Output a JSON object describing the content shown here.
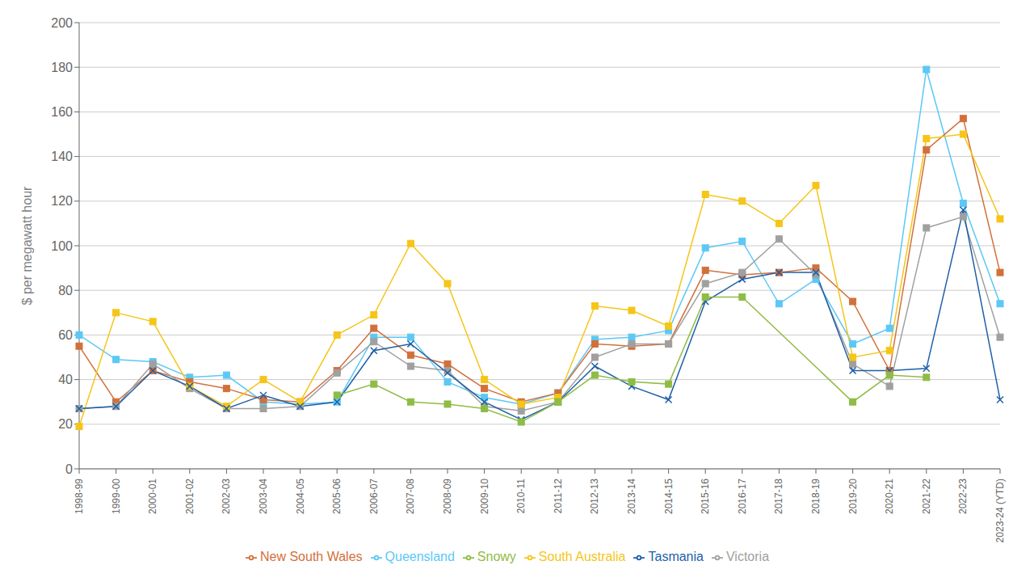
{
  "chart_data": {
    "type": "line",
    "ylabel": "$ per megawatt hour",
    "categories": [
      "1998-99",
      "1999-00",
      "2000-01",
      "2001-02",
      "2002-03",
      "2003-04",
      "2004-05",
      "2005-06",
      "2006-07",
      "2007-08",
      "2008-09",
      "2009-10",
      "2010-11",
      "2011-12",
      "2012-13",
      "2013-14",
      "2014-15",
      "2015-16",
      "2016-17",
      "2017-18",
      "2018-19",
      "2019-20",
      "2020-21",
      "2021-22",
      "2022-23",
      "2023-24 (YTD)"
    ],
    "series": [
      {
        "name": "Queensland",
        "color": "#5BC8F5",
        "marker": "square",
        "values": [
          60,
          49,
          48,
          41,
          42,
          30,
          29,
          30,
          59,
          59,
          39,
          32,
          29,
          34,
          58,
          59,
          62,
          99,
          102,
          74,
          85,
          56,
          63,
          179,
          119,
          74
        ]
      },
      {
        "name": "New South Wales",
        "color": "#D2703A",
        "marker": "square",
        "values": [
          55,
          30,
          44,
          39,
          36,
          31,
          30,
          44,
          63,
          51,
          47,
          36,
          30,
          34,
          56,
          55,
          56,
          89,
          87,
          88,
          90,
          75,
          44,
          143,
          157,
          88
        ]
      },
      {
        "name": "Victoria",
        "color": "#A0A0A0",
        "marker": "square",
        "values": [
          27,
          28,
          47,
          36,
          27,
          27,
          28,
          43,
          57,
          46,
          44,
          28,
          26,
          30,
          50,
          56,
          56,
          83,
          88,
          103,
          87,
          47,
          37,
          108,
          113,
          59
        ]
      },
      {
        "name": "South Australia",
        "color": "#F5C518",
        "marker": "square",
        "values": [
          19,
          70,
          66,
          37,
          28,
          40,
          30,
          60,
          69,
          101,
          83,
          40,
          29,
          32,
          73,
          71,
          64,
          123,
          120,
          110,
          127,
          50,
          53,
          148,
          150,
          112
        ]
      },
      {
        "name": "Tasmania",
        "color": "#1E5FA8",
        "marker": "x",
        "values": [
          27,
          28,
          44,
          37,
          27,
          33,
          28,
          30,
          53,
          56,
          43,
          30,
          22,
          30,
          46,
          37,
          31,
          75,
          85,
          88,
          88,
          44,
          44,
          45,
          116,
          31
        ]
      },
      {
        "name": "Snowy",
        "color": "#8FBC45",
        "marker": "square",
        "values": [
          null,
          null,
          null,
          null,
          null,
          null,
          null,
          33,
          38,
          30,
          29,
          27,
          21,
          30,
          42,
          39,
          38,
          77,
          77,
          null,
          null,
          30,
          42,
          41,
          null,
          null
        ]
      }
    ],
    "ylim": [
      0,
      200
    ],
    "yticks": [
      0,
      20,
      40,
      60,
      80,
      100,
      120,
      140,
      160,
      180,
      200
    ],
    "grid": true,
    "legend": "bottom"
  }
}
